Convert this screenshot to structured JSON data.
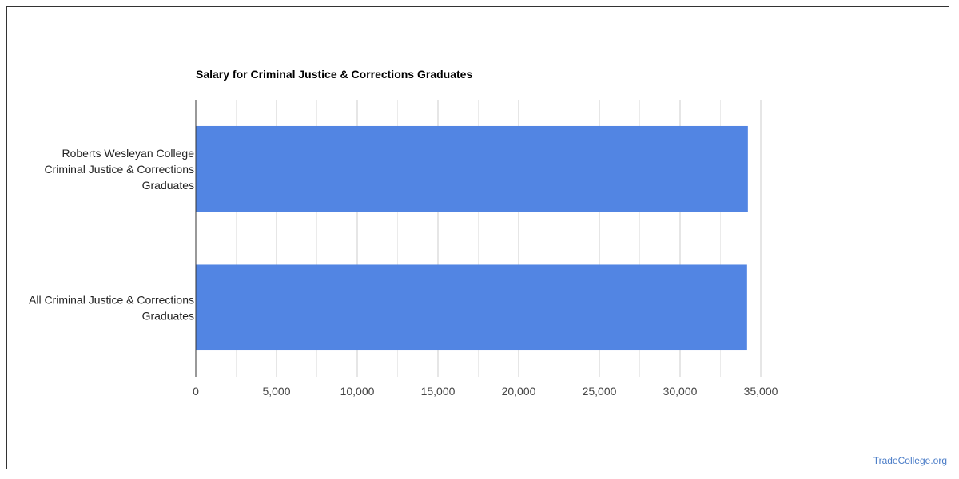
{
  "chart_data": {
    "type": "bar",
    "orientation": "horizontal",
    "title": "Salary for Criminal Justice & Corrections Graduates",
    "categories": [
      [
        "Roberts Wesleyan College",
        "Criminal Justice & Corrections",
        "Graduates"
      ],
      [
        "All Criminal Justice & Corrections",
        "Graduates"
      ]
    ],
    "values": [
      34200,
      34150
    ],
    "xlim": [
      0,
      35000
    ],
    "xticks": [
      "0",
      "5,000",
      "10,000",
      "15,000",
      "20,000",
      "25,000",
      "30,000",
      "35,000"
    ],
    "bar_color": "#5285e3",
    "grid": true,
    "legend": "none"
  },
  "watermark": "TradeCollege.org"
}
